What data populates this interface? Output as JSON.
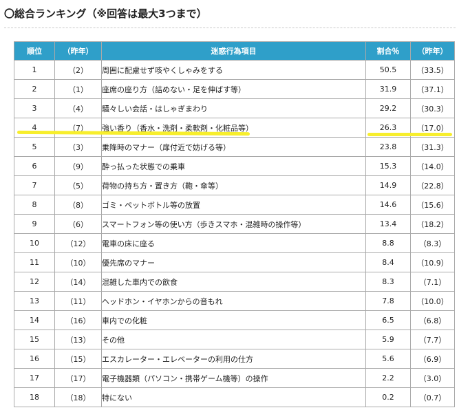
{
  "page": {
    "title": "〇総合ランキング（※回答は最大3つまで）"
  },
  "table": {
    "headers": {
      "rank": "順位",
      "prev_rank": "（昨年）",
      "item": "迷惑行為項目",
      "percent": "割合％",
      "prev_percent": "（昨年）"
    },
    "rows": [
      {
        "rank": "1",
        "prev_rank": "（2）",
        "item": "周囲に配慮せず咳やくしゃみをする",
        "percent": "50.5",
        "prev_percent": "（33.5）"
      },
      {
        "rank": "2",
        "prev_rank": "（1）",
        "item": "座席の座り方（詰めない・足を伸ばす等）",
        "percent": "31.9",
        "prev_percent": "（37.1）"
      },
      {
        "rank": "3",
        "prev_rank": "（4）",
        "item": "騒々しい会話・はしゃぎまわり",
        "percent": "29.2",
        "prev_percent": "（30.3）"
      },
      {
        "rank": "4",
        "prev_rank": "（7）",
        "item": "強い香り（香水・洗剤・柔軟剤・化粧品等）",
        "percent": "26.3",
        "prev_percent": "（17.0）"
      },
      {
        "rank": "5",
        "prev_rank": "（3）",
        "item": "乗降時のマナー（扉付近で妨げる等）",
        "percent": "23.8",
        "prev_percent": "（31.3）"
      },
      {
        "rank": "6",
        "prev_rank": "（9）",
        "item": "酔っ払った状態での乗車",
        "percent": "15.3",
        "prev_percent": "（14.0）"
      },
      {
        "rank": "7",
        "prev_rank": "（5）",
        "item": "荷物の持ち方・置き方（鞄・傘等）",
        "percent": "14.9",
        "prev_percent": "（22.8）"
      },
      {
        "rank": "8",
        "prev_rank": "（8）",
        "item": "ゴミ・ペットボトル等の放置",
        "percent": "14.6",
        "prev_percent": "（15.6）"
      },
      {
        "rank": "9",
        "prev_rank": "（6）",
        "item": "スマートフォン等の使い方（歩きスマホ・混雑時の操作等）",
        "percent": "13.4",
        "prev_percent": "（18.2）"
      },
      {
        "rank": "10",
        "prev_rank": "（12）",
        "item": "電車の床に座る",
        "percent": "8.8",
        "prev_percent": "（8.3）"
      },
      {
        "rank": "11",
        "prev_rank": "（10）",
        "item": "優先席のマナー",
        "percent": "8.4",
        "prev_percent": "（10.9）"
      },
      {
        "rank": "12",
        "prev_rank": "（14）",
        "item": "混雑した車内での飲食",
        "percent": "8.3",
        "prev_percent": "（7.1）"
      },
      {
        "rank": "13",
        "prev_rank": "（11）",
        "item": "ヘッドホン・イヤホンからの音もれ",
        "percent": "7.8",
        "prev_percent": "（10.0）"
      },
      {
        "rank": "14",
        "prev_rank": "（16）",
        "item": "車内での化粧",
        "percent": "6.5",
        "prev_percent": "（6.8）"
      },
      {
        "rank": "15",
        "prev_rank": "（13）",
        "item": "その他",
        "percent": "5.9",
        "prev_percent": "（7.7）"
      },
      {
        "rank": "16",
        "prev_rank": "（15）",
        "item": "エスカレーター・エレベーターの利用の仕方",
        "percent": "5.6",
        "prev_percent": "（6.9）"
      },
      {
        "rank": "17",
        "prev_rank": "（17）",
        "item": "電子機器類（パソコン・携帯ゲーム機等）の操作",
        "percent": "2.2",
        "prev_percent": "（3.0）"
      },
      {
        "rank": "18",
        "prev_rank": "（18）",
        "item": "特にない",
        "percent": "0.2",
        "prev_percent": "（0.7）"
      }
    ]
  },
  "annotations": {
    "highlighted_rank": "4",
    "highlight_color": "#f7ee2c",
    "header_color": "#2f9fc9"
  }
}
